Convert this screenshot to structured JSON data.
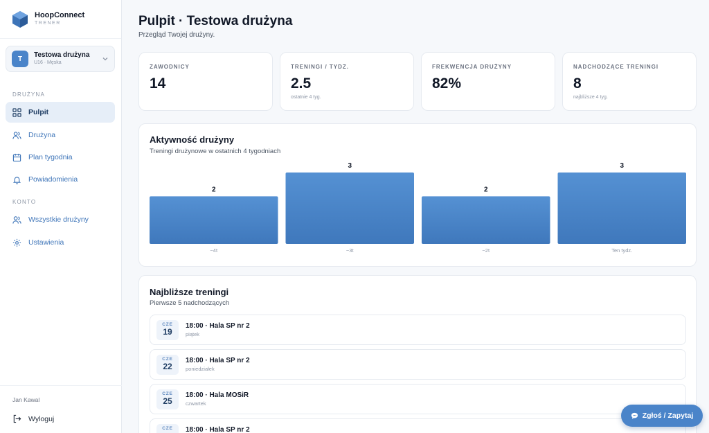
{
  "brand": {
    "name": "HoopConnect",
    "role": "TRENER"
  },
  "team_selector": {
    "initial": "T",
    "name": "Testowa drużyna",
    "sub": "U16 · Męska"
  },
  "sidebar": {
    "section_team": "DRUŻYNA",
    "team_items": [
      {
        "label": "Pulpit",
        "icon": "dashboard-icon",
        "active": true
      },
      {
        "label": "Drużyna",
        "icon": "users-icon",
        "active": false
      },
      {
        "label": "Plan tygodnia",
        "icon": "calendar-icon",
        "active": false
      },
      {
        "label": "Powiadomienia",
        "icon": "bell-icon",
        "active": false
      }
    ],
    "section_account": "KONTO",
    "account_items": [
      {
        "label": "Wszystkie drużyny",
        "icon": "users-icon"
      },
      {
        "label": "Ustawienia",
        "icon": "gear-icon"
      }
    ],
    "user_name": "Jan Kawal",
    "logout_label": "Wyloguj"
  },
  "header": {
    "title": "Pulpit · Testowa drużyna",
    "subtitle": "Przegląd Twojej drużyny."
  },
  "stats": [
    {
      "label": "ZAWODNICY",
      "value": "14",
      "note": ""
    },
    {
      "label": "TRENINGI / TYDZ.",
      "value": "2.5",
      "note": "ostatnie 4 tyg."
    },
    {
      "label": "FREKWENCJA DRUŻYNY",
      "value": "82%",
      "note": ""
    },
    {
      "label": "NADCHODZĄCE TRENINGI",
      "value": "8",
      "note": "najbliższe 4 tyg."
    }
  ],
  "activity": {
    "title": "Aktywność drużyny",
    "subtitle": "Treningi drużynowe w ostatnich 4 tygodniach"
  },
  "chart_data": {
    "type": "bar",
    "categories": [
      "−4t",
      "−3t",
      "−2t",
      "Ten tydz."
    ],
    "values": [
      2,
      3,
      2,
      3
    ],
    "ylim": [
      0,
      3
    ],
    "grid": false,
    "bar_color": "#4a84c9"
  },
  "upcoming": {
    "title": "Najbliższe treningi",
    "subtitle": "Pierwsze 5 nadchodzących",
    "sessions": [
      {
        "dow": "CZE",
        "day": "19",
        "title": "18:00 · Hala SP nr 2",
        "weekday": "piątek"
      },
      {
        "dow": "CZE",
        "day": "22",
        "title": "18:00 · Hala SP nr 2",
        "weekday": "poniedziałek"
      },
      {
        "dow": "CZE",
        "day": "25",
        "title": "18:00 · Hala MOSiR",
        "weekday": "czwartek"
      },
      {
        "dow": "CZE",
        "day": "",
        "title": "18:00 · Hala SP nr 2",
        "weekday": ""
      }
    ]
  },
  "report_button": {
    "label": "Zgłoś / Zapytaj",
    "icon": "chat-icon"
  },
  "colors": {
    "accent": "#4a84c9",
    "active_bg": "#e6eef8",
    "page_bg": "#f6f8fb"
  }
}
